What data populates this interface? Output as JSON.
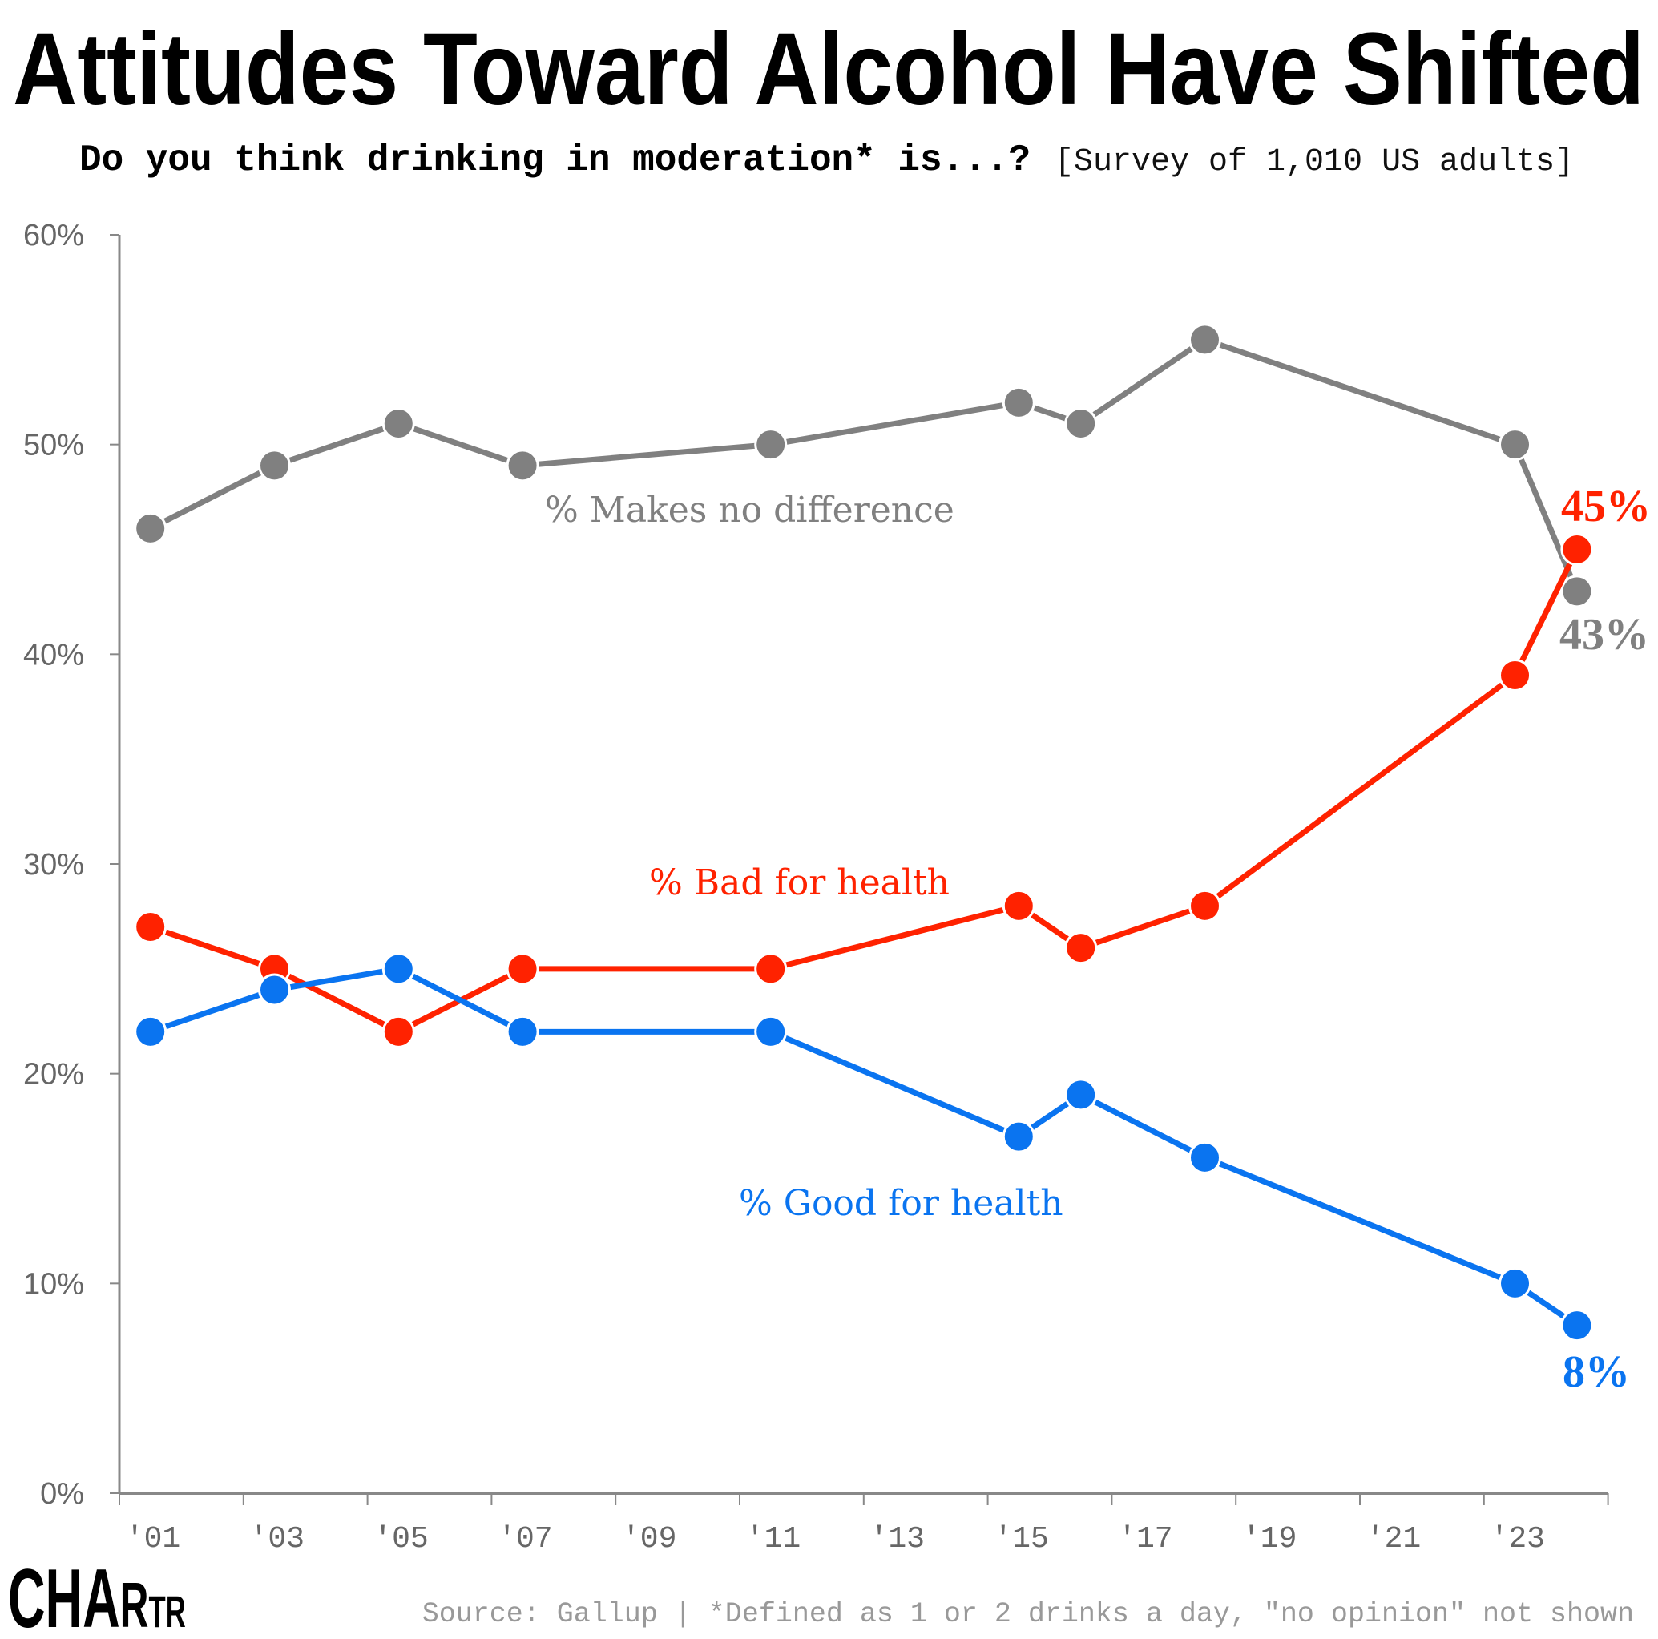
{
  "chart_data": {
    "type": "line",
    "title": "Attitudes Toward Alcohol Have Shifted",
    "subtitle_question": "Do you think drinking in moderation* is...?",
    "subtitle_survey": "[Survey of 1,010 US adults]",
    "x": [
      2001,
      2003,
      2005,
      2007,
      2011,
      2015,
      2016,
      2018,
      2023,
      2024
    ],
    "x_tick_labels": [
      "'01",
      "'03",
      "'05",
      "'07",
      "'09",
      "'11",
      "'13",
      "'15",
      "'17",
      "'19",
      "'21",
      "'23"
    ],
    "y_tick_labels": [
      "0%",
      "10%",
      "20%",
      "30%",
      "40%",
      "50%",
      "60%"
    ],
    "ylim": [
      0,
      60
    ],
    "grid": false,
    "series": [
      {
        "name": "% Makes no difference",
        "color": "#808080",
        "values": [
          46,
          49,
          51,
          49,
          50,
          52,
          51,
          55,
          50,
          43
        ],
        "end_label": "43%"
      },
      {
        "name": "% Bad for health",
        "color": "#ff2200",
        "values": [
          27,
          25,
          22,
          25,
          25,
          28,
          26,
          28,
          39,
          45
        ],
        "end_label": "45%"
      },
      {
        "name": "% Good for health",
        "color": "#0a74f0",
        "values": [
          22,
          24,
          25,
          22,
          22,
          17,
          19,
          16,
          10,
          8
        ],
        "end_label": "8%"
      }
    ],
    "source": "Source: Gallup | *Defined as 1 or 2 drinks a day, \"no opinion\" not shown"
  },
  "logo": {
    "text_big": "CHA",
    "text_mid": "R",
    "text_small": "TR",
    "full": "CHARTR"
  }
}
